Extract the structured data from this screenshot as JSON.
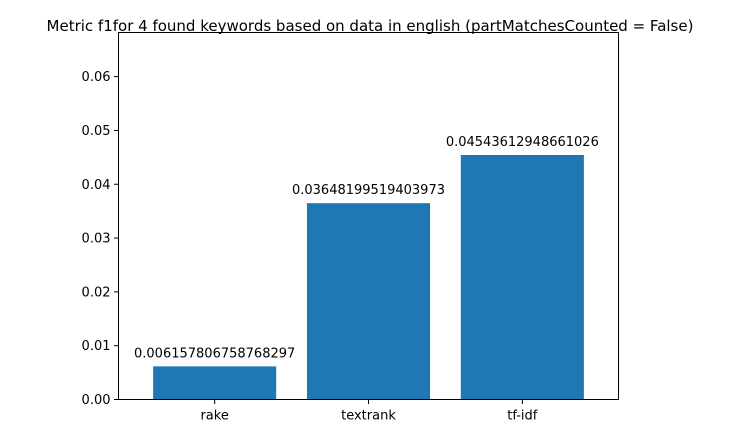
{
  "chart_data": {
    "type": "bar",
    "title": "Metric f1for 4 found keywords based on data in english (partMatchesCounted = False)",
    "xlabel": "",
    "ylabel": "",
    "categories": [
      "rake",
      "textrank",
      "tf-idf"
    ],
    "values": [
      0.006157806758768297,
      0.03648199519403973,
      0.04543612948661026
    ],
    "data_labels": [
      "0.006157806758768297",
      "0.03648199519403973",
      "0.04543612948661026"
    ],
    "ylim": [
      0,
      0.0682
    ],
    "yticks": [
      0.0,
      0.01,
      0.02,
      0.03,
      0.04,
      0.05,
      0.06
    ],
    "ytick_labels": [
      "0.00",
      "0.01",
      "0.02",
      "0.03",
      "0.04",
      "0.05",
      "0.06"
    ],
    "bar_color": "#1f77b4",
    "grid": false,
    "legend": "none"
  }
}
